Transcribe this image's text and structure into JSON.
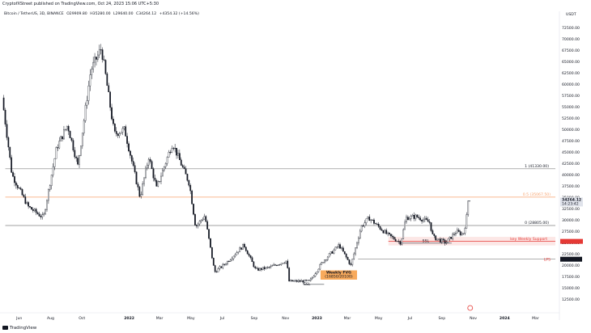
{
  "header": {
    "published": "CryptofXStreet published on TradingView.com, Oct 24, 2023 15:06 UTC+5:30"
  },
  "symbol_line": {
    "name": "Bitcoin / TetherUS, 3D, BINANCE",
    "open": "O29909.80",
    "high": "H35280.00",
    "low": "L29640.00",
    "close": "C34264.12",
    "change": "+4354.32 (+14.56%)"
  },
  "footer": {
    "brand": "TradingView"
  },
  "colors": {
    "candle": "#131722",
    "gray_line": "#808080",
    "fib_orange": "#f7a26d",
    "support_red": "#e53935",
    "fvg_orange": "#f7a14a",
    "last_price_bg": "#e0e3eb"
  },
  "chart_data": {
    "type": "candlestick",
    "currency_label": "USDT",
    "y_axis_ticks": [
      "72500.00",
      "70000.00",
      "67500.00",
      "65000.00",
      "62500.00",
      "60000.00",
      "57500.00",
      "55000.00",
      "52500.00",
      "50000.00",
      "47500.00",
      "45000.00",
      "42500.00",
      "40000.00",
      "37500.00",
      "35000.00",
      "32500.00",
      "30000.00",
      "27500.00",
      "25000.00",
      "22500.00",
      "20000.00",
      "17500.00",
      "15000.00",
      "12500.00"
    ],
    "ylim": [
      10600,
      73600
    ],
    "x_axis_ticks": [
      "Jun",
      "Aug",
      "Oct",
      "2022",
      "Mar",
      "May",
      "Jul",
      "Sep",
      "Nov",
      "2023",
      "Mar",
      "May",
      "Jul",
      "Sep",
      "Nov",
      "2024",
      "Mar"
    ],
    "price_path": [
      [
        "2021-05-01",
        57000
      ],
      [
        "2021-05-20",
        40000
      ],
      [
        "2021-06-20",
        33000
      ],
      [
        "2021-07-20",
        30500
      ],
      [
        "2021-08-15",
        46000
      ],
      [
        "2021-09-05",
        51000
      ],
      [
        "2021-09-25",
        42000
      ],
      [
        "2021-10-20",
        63000
      ],
      [
        "2021-11-10",
        68000
      ],
      [
        "2021-12-05",
        49000
      ],
      [
        "2021-12-25",
        50000
      ],
      [
        "2022-01-10",
        42000
      ],
      [
        "2022-01-24",
        35000
      ],
      [
        "2022-02-10",
        44000
      ],
      [
        "2022-02-25",
        37000
      ],
      [
        "2022-03-28",
        47000
      ],
      [
        "2022-04-30",
        38000
      ],
      [
        "2022-05-12",
        28500
      ],
      [
        "2022-05-30",
        31000
      ],
      [
        "2022-06-18",
        18500
      ],
      [
        "2022-07-10",
        20500
      ],
      [
        "2022-08-14",
        24500
      ],
      [
        "2022-09-06",
        19000
      ],
      [
        "2022-10-01",
        19500
      ],
      [
        "2022-11-05",
        21000
      ],
      [
        "2022-11-10",
        16500
      ],
      [
        "2022-12-20",
        16500
      ],
      [
        "2023-01-14",
        20800
      ],
      [
        "2023-02-15",
        24500
      ],
      [
        "2023-03-10",
        20000
      ],
      [
        "2023-03-30",
        28500
      ],
      [
        "2023-04-14",
        30500
      ],
      [
        "2023-05-20",
        26800
      ],
      [
        "2023-06-15",
        25000
      ],
      [
        "2023-06-25",
        30500
      ],
      [
        "2023-07-15",
        30800
      ],
      [
        "2023-08-10",
        29500
      ],
      [
        "2023-08-17",
        26200
      ],
      [
        "2023-09-11",
        25000
      ],
      [
        "2023-10-01",
        27500
      ],
      [
        "2023-10-14",
        26800
      ],
      [
        "2023-10-20",
        29600
      ],
      [
        "2023-10-24",
        34264
      ]
    ],
    "levels": [
      {
        "label": "1 (41330.00)",
        "price": 41330,
        "style": "gray"
      },
      {
        "label": "0.5 (35067.50)",
        "price": 35067.5,
        "style": "orange"
      },
      {
        "label": "0 (28805.00)",
        "price": 28805,
        "style": "gray"
      },
      {
        "label": "key Weekly Support",
        "price": 25300,
        "style": "red-zone"
      },
      {
        "label": "LPS",
        "price": 21361.01,
        "style": "gray"
      }
    ],
    "price_tags": {
      "last": "34264.12",
      "countdown": "14:23:42",
      "adjacent": "32500.00",
      "lps_tag": "21361.01"
    },
    "annotations": [
      {
        "text": "SSL",
        "near": "2023-08"
      },
      {
        "text": "SSL",
        "near": "2022-12"
      },
      {
        "text": "Weekly FVG",
        "near": "2023-01"
      },
      {
        "text": "(16850/20100)",
        "near": "2023-01"
      }
    ]
  }
}
